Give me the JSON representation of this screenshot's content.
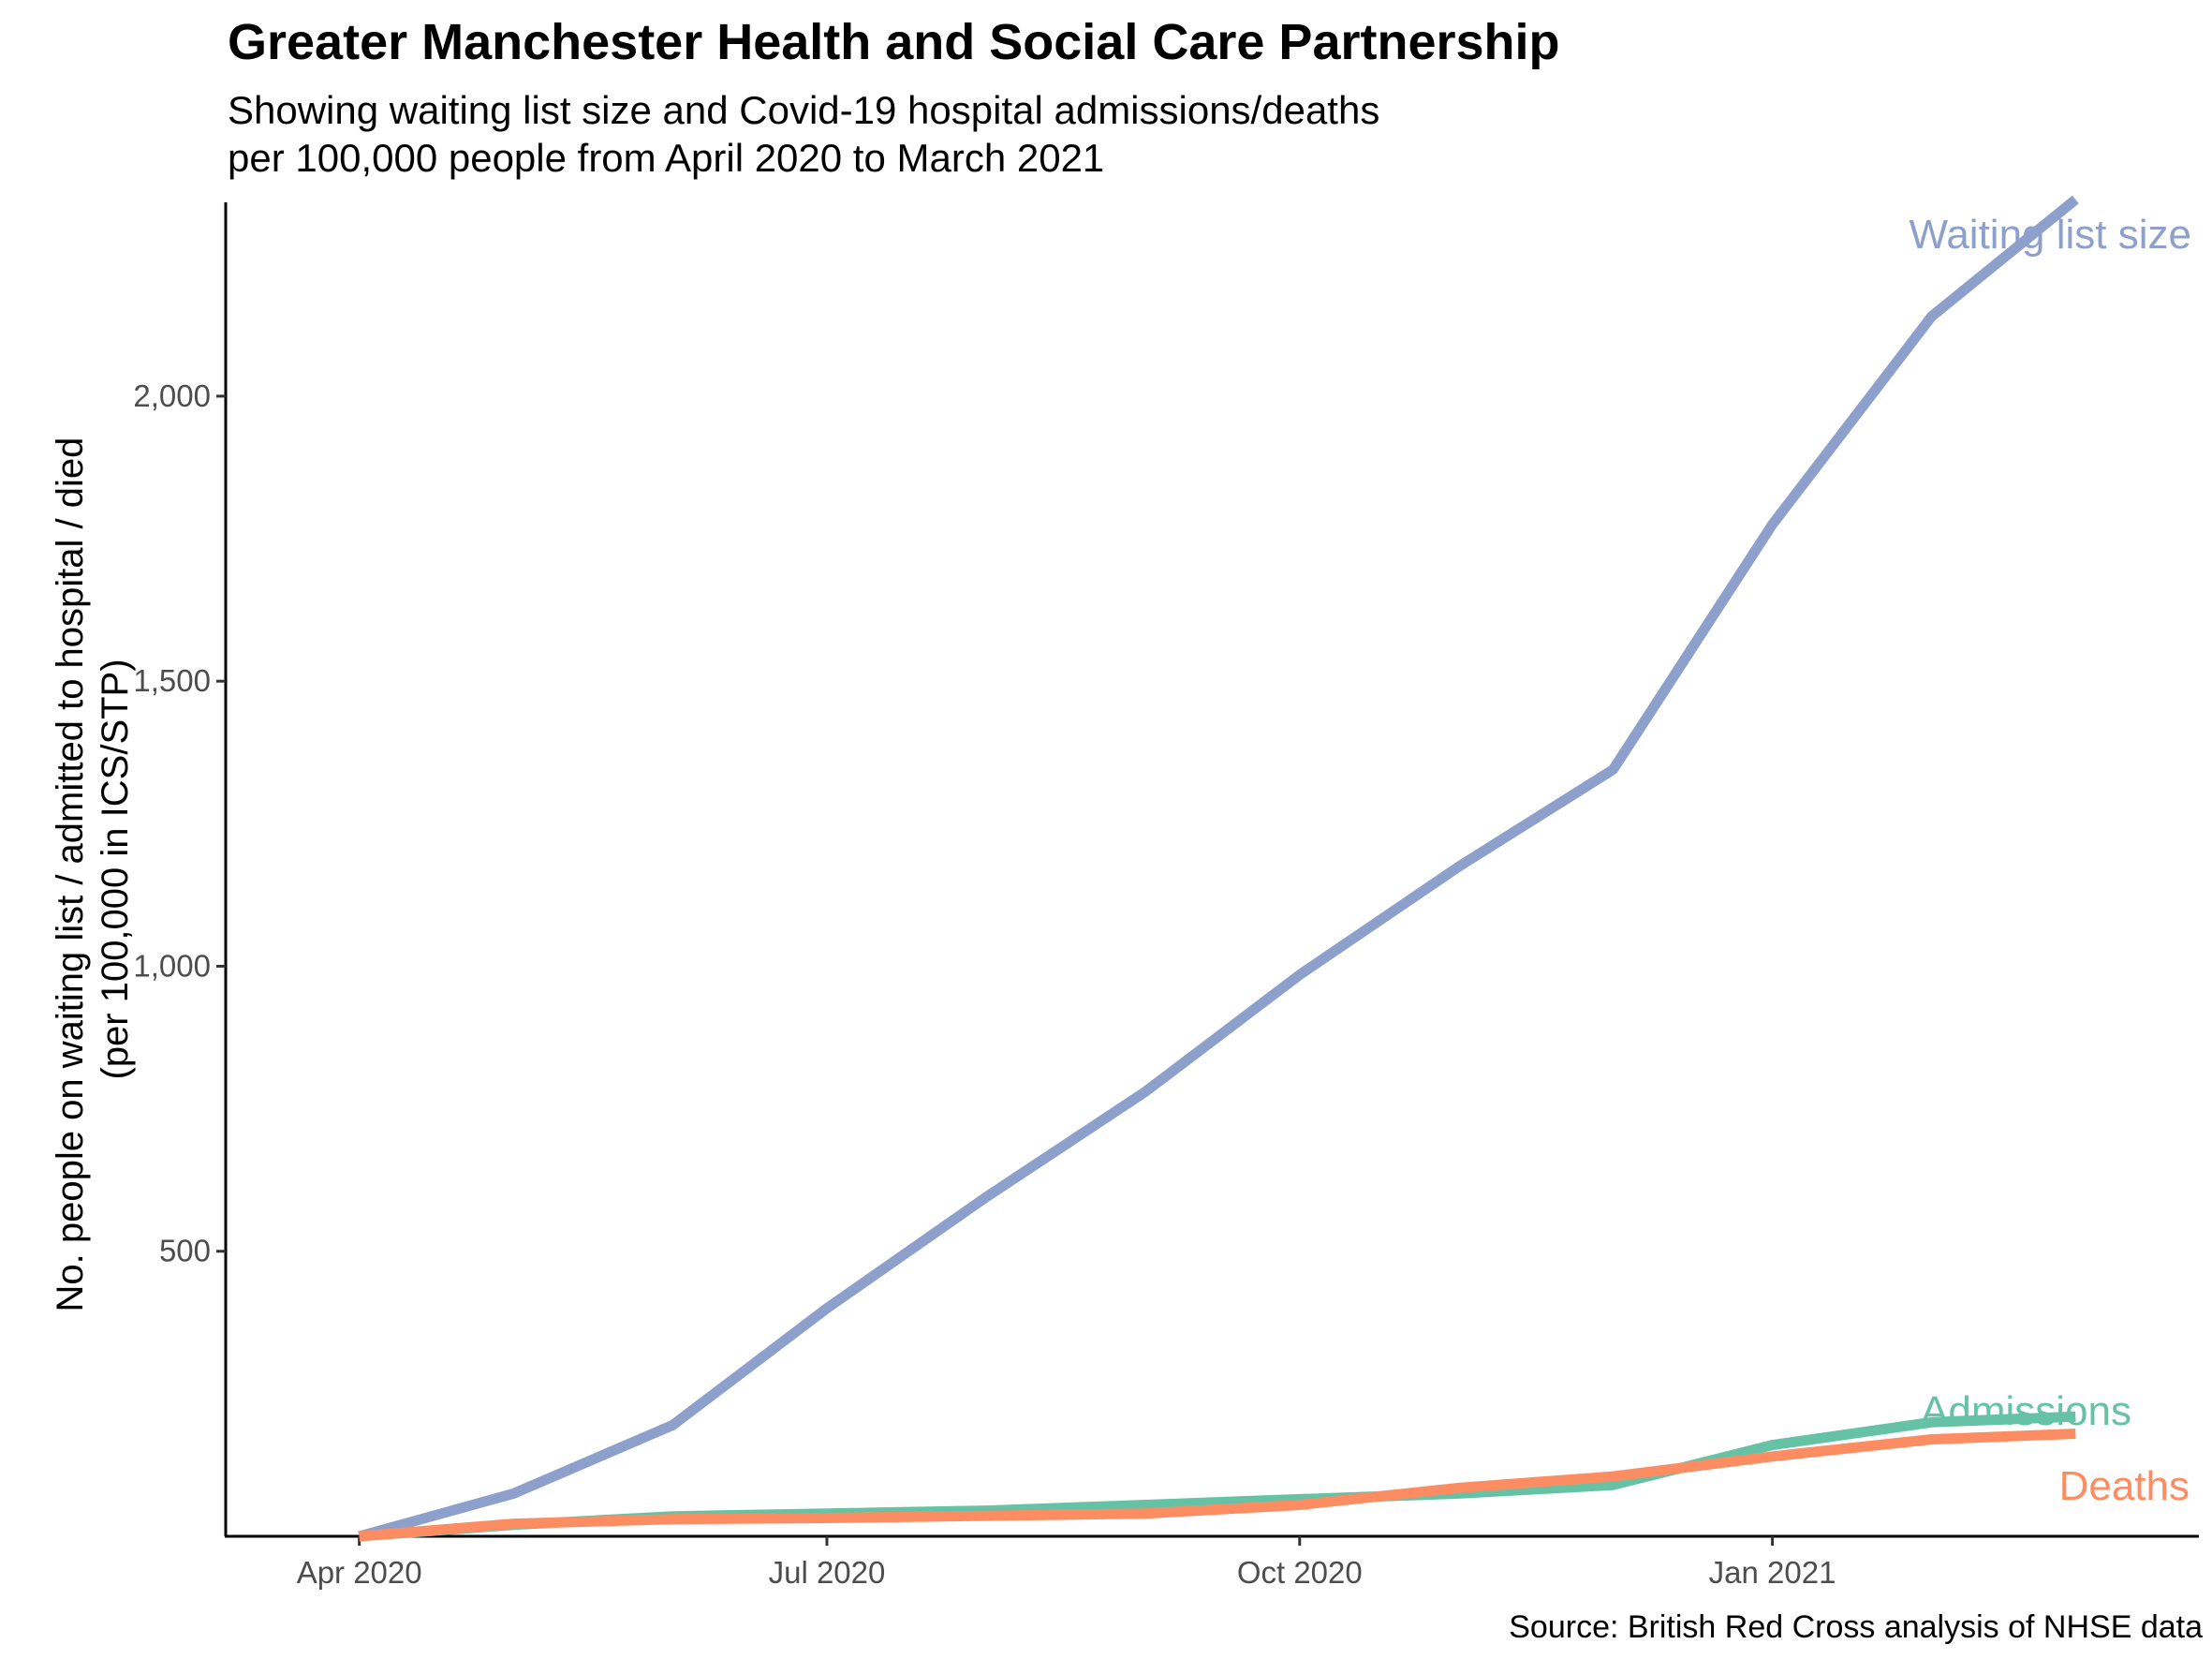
{
  "chart_data": {
    "type": "line",
    "title": "Greater Manchester Health and Social Care Partnership",
    "subtitle_lines": [
      "Showing waiting list size and Covid-19 hospital admissions/deaths",
      "per 100,000 people from April 2020 to March 2021"
    ],
    "ylabel_lines": [
      "No. people on waiting list / admitted to hospital / died",
      "(per 100,000 in ICS/STP)"
    ],
    "xlabel": "",
    "caption": "Source: British Red Cross analysis of NHSE data",
    "x": [
      "2020-04-01",
      "2020-05-01",
      "2020-06-01",
      "2020-07-01",
      "2020-08-01",
      "2020-09-01",
      "2020-10-01",
      "2020-11-01",
      "2020-12-01",
      "2021-01-01",
      "2021-02-01",
      "2021-03-01"
    ],
    "x_ticks": [
      {
        "date": "2020-04-01",
        "label": "Apr 2020"
      },
      {
        "date": "2020-07-01",
        "label": "Jul 2020"
      },
      {
        "date": "2020-10-01",
        "label": "Oct 2020"
      },
      {
        "date": "2021-01-01",
        "label": "Jan 2021"
      }
    ],
    "y_ticks": [
      {
        "value": 500,
        "label": "500"
      },
      {
        "value": 1000,
        "label": "1,000"
      },
      {
        "value": 1500,
        "label": "1,500"
      },
      {
        "value": 2000,
        "label": "2,000"
      }
    ],
    "xlim": [
      "2020-03-06",
      "2021-03-25"
    ],
    "ylim": [
      0,
      2340
    ],
    "grid": false,
    "legend": "none (direct labels at line ends)",
    "series": [
      {
        "name": "Waiting list size",
        "color": "#8DA0CB",
        "values": [
          0,
          75,
          195,
          400,
          595,
          780,
          985,
          1175,
          1345,
          1775,
          2140,
          2345
        ]
      },
      {
        "name": "Admissions",
        "color": "#66C2A5",
        "values": [
          0,
          20,
          35,
          40,
          45,
          55,
          65,
          75,
          90,
          160,
          200,
          210
        ]
      },
      {
        "name": "Deaths",
        "color": "#FC8D62",
        "values": [
          0,
          22,
          30,
          32,
          36,
          40,
          55,
          85,
          105,
          140,
          170,
          180
        ]
      }
    ]
  }
}
